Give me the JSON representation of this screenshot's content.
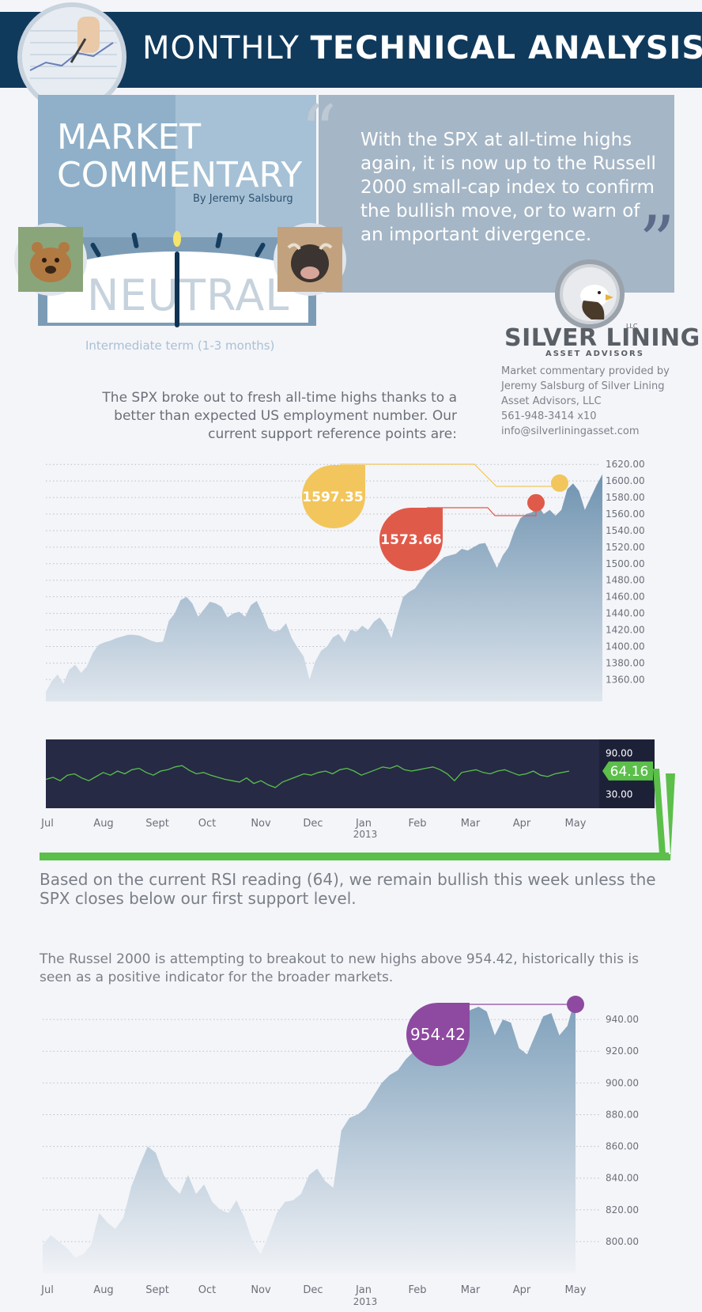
{
  "header": {
    "title_light": "MONTHLY",
    "title_bold": "TECHNICAL ANALYSIS"
  },
  "commentary": {
    "title": "MARKET\nCOMMENTARY",
    "author": "By Jeremy Salsburg",
    "quote": "With the SPX at all-time highs again, it is now up to the Russell 2000 small-cap index to confirm the bullish move, or to warn of an important divergence."
  },
  "gauge": {
    "reading": "NEUTRAL",
    "caption": "Intermediate term (1-3 months)"
  },
  "logo": {
    "name": "SILVER LINING",
    "llc": "LLC",
    "sub": "ASSET ADVISORS"
  },
  "contact": {
    "line1": "Market commentary provided by",
    "line2": "Jeremy Salsburg of Silver Lining",
    "line3": "Asset Advisors, LLC",
    "phone": "561-948-3414 x10",
    "email": "info@silverliningasset.com"
  },
  "intro_text": "The SPX broke out to fresh all-time highs thanks to a better than expected US employment number. Our current support reference points are:",
  "rsi_text": "Based on the current RSI reading (64), we remain bullish this week unless the SPX closes below our first support level.",
  "rut_text": "The Russel 2000 is attempting to breakout to new highs above 954.42, historically this is seen as a positive indicator for the broader markets.",
  "colors": {
    "area": "#7d9fba",
    "yellow": "#f2c65c",
    "red": "#e05a4a",
    "purple": "#8e4aa0",
    "rsi_bg": "#262a45",
    "rsi_line": "#5bbf4a",
    "green": "#5bbf4a"
  },
  "chart_data": [
    {
      "type": "area",
      "ylim": [
        1345,
        1625
      ],
      "y_ticks": [
        "1620.00",
        "1600.00",
        "1580.00",
        "1560.00",
        "1540.00",
        "1520.00",
        "1500.00",
        "1480.00",
        "1460.00",
        "1440.00",
        "1420.00",
        "1400.00",
        "1380.00",
        "1360.00"
      ],
      "x_labels": [
        "Jul",
        "Aug",
        "Sept",
        "Oct",
        "Nov",
        "Dec",
        "Jan",
        "Feb",
        "Mar",
        "Apr",
        "May"
      ],
      "x_sublabel": "2013",
      "values": [
        1345,
        1358,
        1366,
        1355,
        1372,
        1378,
        1368,
        1376,
        1392,
        1402,
        1405,
        1407,
        1410,
        1412,
        1414,
        1414,
        1413,
        1410,
        1407,
        1405,
        1406,
        1431,
        1440,
        1456,
        1460,
        1452,
        1436,
        1445,
        1454,
        1452,
        1448,
        1435,
        1440,
        1442,
        1436,
        1450,
        1455,
        1440,
        1422,
        1418,
        1420,
        1428,
        1410,
        1398,
        1388,
        1360,
        1382,
        1395,
        1400,
        1411,
        1415,
        1405,
        1420,
        1418,
        1425,
        1420,
        1430,
        1435,
        1425,
        1410,
        1437,
        1460,
        1466,
        1470,
        1480,
        1490,
        1496,
        1502,
        1508,
        1510,
        1512,
        1518,
        1516,
        1520,
        1524,
        1525,
        1510,
        1495,
        1510,
        1520,
        1540,
        1555,
        1560,
        1562,
        1570,
        1560,
        1565,
        1558,
        1565,
        1590,
        1597,
        1588,
        1565,
        1580,
        1595,
        1608
      ],
      "markers": [
        {
          "label": "1597.35",
          "value": 1597.35,
          "color": "yellow"
        },
        {
          "label": "1573.66",
          "value": 1573.66,
          "color": "red"
        }
      ]
    },
    {
      "type": "line",
      "ylim": [
        10,
        110
      ],
      "y_ticks": [
        "90.00",
        "30.00"
      ],
      "current_label": "64.16",
      "current": 64.16,
      "values": [
        52,
        55,
        50,
        58,
        60,
        54,
        50,
        56,
        62,
        58,
        64,
        60,
        66,
        68,
        62,
        58,
        64,
        66,
        70,
        72,
        65,
        60,
        62,
        58,
        55,
        52,
        50,
        48,
        54,
        46,
        50,
        44,
        40,
        48,
        52,
        56,
        60,
        58,
        62,
        64,
        60,
        66,
        68,
        64,
        58,
        62,
        66,
        70,
        68,
        72,
        66,
        64,
        66,
        68,
        70,
        66,
        60,
        50,
        62,
        64,
        66,
        62,
        60,
        64,
        66,
        62,
        58,
        60,
        64,
        58,
        56,
        60,
        62,
        64
      ]
    },
    {
      "type": "area",
      "ylim": [
        790,
        952
      ],
      "y_ticks": [
        "940.00",
        "920.00",
        "900.00",
        "880.00",
        "860.00",
        "840.00",
        "820.00",
        "800.00"
      ],
      "x_labels": [
        "Jul",
        "Aug",
        "Sept",
        "Oct",
        "Nov",
        "Dec",
        "Jan",
        "Feb",
        "Mar",
        "Apr",
        "May"
      ],
      "x_sublabel": "2013",
      "values": [
        798,
        804,
        800,
        796,
        790,
        792,
        798,
        818,
        812,
        808,
        815,
        835,
        848,
        860,
        856,
        842,
        835,
        830,
        842,
        830,
        836,
        825,
        820,
        818,
        826,
        815,
        800,
        792,
        804,
        818,
        825,
        826,
        830,
        842,
        846,
        838,
        834,
        870,
        878,
        880,
        884,
        892,
        900,
        905,
        908,
        915,
        920,
        918,
        925,
        936,
        944,
        948,
        942,
        946,
        948,
        945,
        930,
        940,
        938,
        922,
        918,
        930,
        942,
        944,
        930,
        936,
        954
      ]
    }
  ]
}
